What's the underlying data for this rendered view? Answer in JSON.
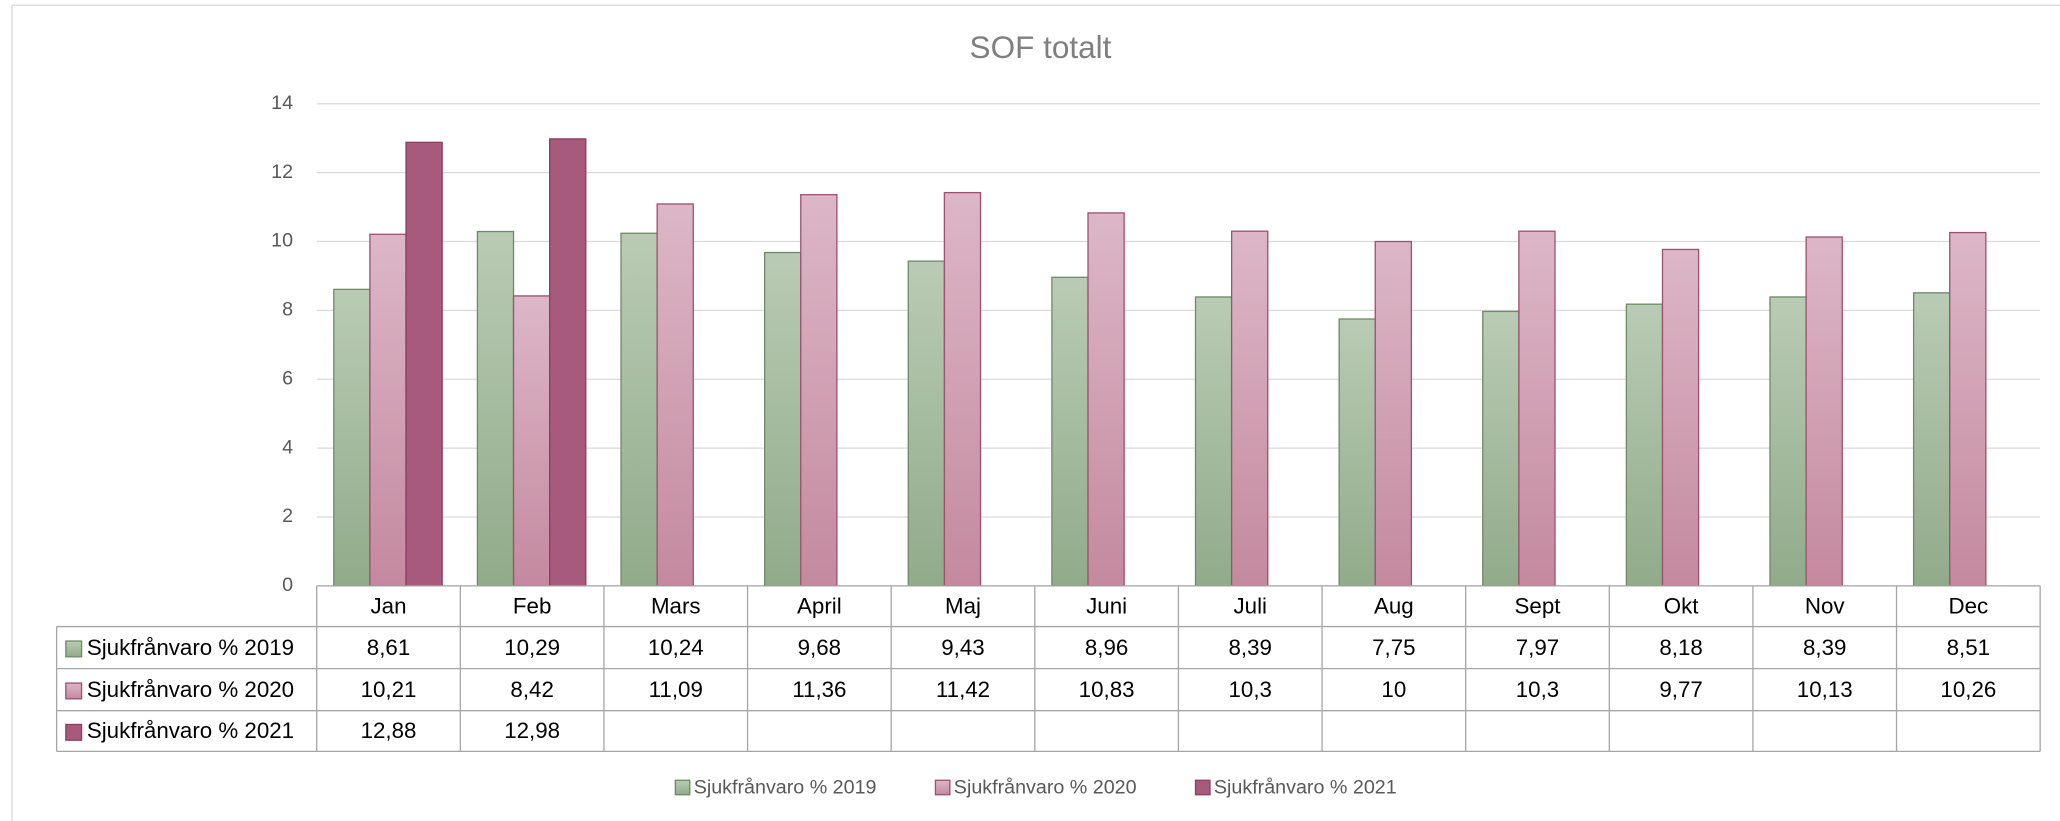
{
  "chart_data": {
    "type": "bar",
    "title": "SOF totalt",
    "categories": [
      "Jan",
      "Feb",
      "Mars",
      "April",
      "Maj",
      "Juni",
      "Juli",
      "Aug",
      "Sept",
      "Okt",
      "Nov",
      "Dec"
    ],
    "series": [
      {
        "name": "Sjukfrånvaro % 2019",
        "color": "#9db697",
        "values": [
          8.61,
          10.29,
          10.24,
          9.68,
          9.43,
          8.96,
          8.39,
          7.75,
          7.97,
          8.18,
          8.39,
          8.51
        ],
        "value_labels": [
          "8,61",
          "10,29",
          "10,24",
          "9,68",
          "9,43",
          "8,96",
          "8,39",
          "7,75",
          "7,97",
          "8,18",
          "8,39",
          "8,51"
        ]
      },
      {
        "name": "Sjukfrånvaro % 2020",
        "color": "#cc9db1",
        "values": [
          10.21,
          8.42,
          11.09,
          11.36,
          11.42,
          10.83,
          10.3,
          10,
          10.3,
          9.77,
          10.13,
          10.26
        ],
        "value_labels": [
          "10,21",
          "8,42",
          "11,09",
          "11,36",
          "11,42",
          "10,83",
          "10,3",
          "10",
          "10,3",
          "9,77",
          "10,13",
          "10,26"
        ]
      },
      {
        "name": "Sjukfrånvaro % 2021",
        "color": "#a85a7c",
        "values": [
          12.88,
          12.98,
          null,
          null,
          null,
          null,
          null,
          null,
          null,
          null,
          null,
          null
        ],
        "value_labels": [
          "12,88",
          "12,98",
          null,
          null,
          null,
          null,
          null,
          null,
          null,
          null,
          null,
          null
        ]
      }
    ],
    "ylim": [
      0,
      14
    ],
    "yticks": [
      0,
      2,
      4,
      6,
      8,
      10,
      12,
      14
    ],
    "grid": true,
    "legend": "bottom"
  }
}
